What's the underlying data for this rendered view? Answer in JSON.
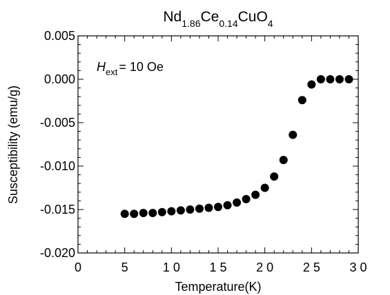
{
  "chart_data": {
    "type": "scatter",
    "title": {
      "parts": [
        {
          "text": "Nd",
          "sub": false
        },
        {
          "text": "1.86",
          "sub": true
        },
        {
          "text": "Ce",
          "sub": false
        },
        {
          "text": "0.14",
          "sub": true
        },
        {
          "text": "CuO",
          "sub": false
        },
        {
          "text": "4",
          "sub": true
        }
      ]
    },
    "annotation": {
      "symbol": "H",
      "subscript": "ext",
      "rest": "= 10 Oe"
    },
    "xlabel": "Temperature(K)",
    "ylabel": "Susceptibility (emu/g)",
    "xlim": [
      0,
      30
    ],
    "ylim": [
      -0.02,
      0.005
    ],
    "x_ticks": [
      0,
      5,
      10,
      15,
      20,
      25,
      30
    ],
    "x_tick_labels": [
      "0",
      "5",
      "1 0",
      "1 5",
      "2 0",
      "2 5",
      "3 0"
    ],
    "y_ticks": [
      -0.02,
      -0.015,
      -0.01,
      -0.005,
      0,
      0.005
    ],
    "y_tick_labels": [
      "-0.020",
      "-0.015",
      "-0.010",
      "-0.005",
      "0.000",
      "0.005"
    ],
    "marker_color": "#000000",
    "grid": false,
    "series": [
      {
        "x": [
          5,
          6,
          7,
          8,
          9,
          10,
          11,
          12,
          13,
          14,
          15,
          16,
          17,
          18,
          19,
          20,
          21,
          22,
          23,
          24,
          25,
          26,
          27,
          28,
          29
        ],
        "y": [
          -0.0155,
          -0.0155,
          -0.0154,
          -0.0154,
          -0.0153,
          -0.0152,
          -0.0151,
          -0.015,
          -0.0149,
          -0.0148,
          -0.0147,
          -0.0145,
          -0.0142,
          -0.0138,
          -0.0133,
          -0.0125,
          -0.0112,
          -0.0093,
          -0.0064,
          -0.0024,
          -0.0006,
          0.0,
          0.0,
          0.0,
          0.0
        ]
      }
    ]
  }
}
